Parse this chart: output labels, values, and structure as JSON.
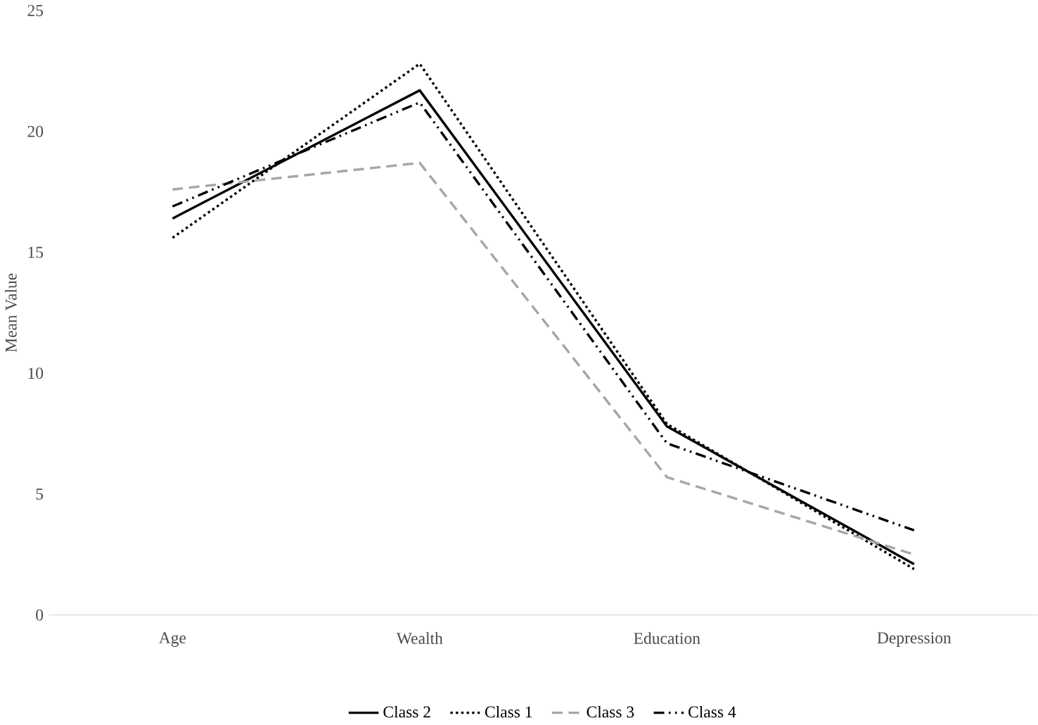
{
  "chart_data": {
    "type": "line",
    "ylabel": "Mean Value",
    "categories": [
      "Age",
      "Wealth",
      "Education",
      "Depression"
    ],
    "series": [
      {
        "name": "Class 2",
        "color": "#000000",
        "line_style": "solid",
        "values": [
          16.4,
          21.7,
          7.8,
          2.1
        ]
      },
      {
        "name": "Class 1",
        "color": "#000000",
        "line_style": "dotted",
        "values": [
          15.6,
          22.8,
          7.9,
          1.9
        ]
      },
      {
        "name": "Class 3",
        "color": "#a6a6a6",
        "line_style": "dashed",
        "values": [
          17.6,
          18.7,
          5.7,
          2.5
        ]
      },
      {
        "name": "Class 4",
        "color": "#000000",
        "line_style": "dashdotted",
        "values": [
          16.9,
          21.2,
          7.1,
          3.5
        ]
      }
    ],
    "ylim": [
      0,
      25
    ],
    "yticks": [
      0,
      5,
      10,
      15,
      20,
      25
    ],
    "legend": "bottom",
    "grid": false,
    "marker": "none"
  }
}
